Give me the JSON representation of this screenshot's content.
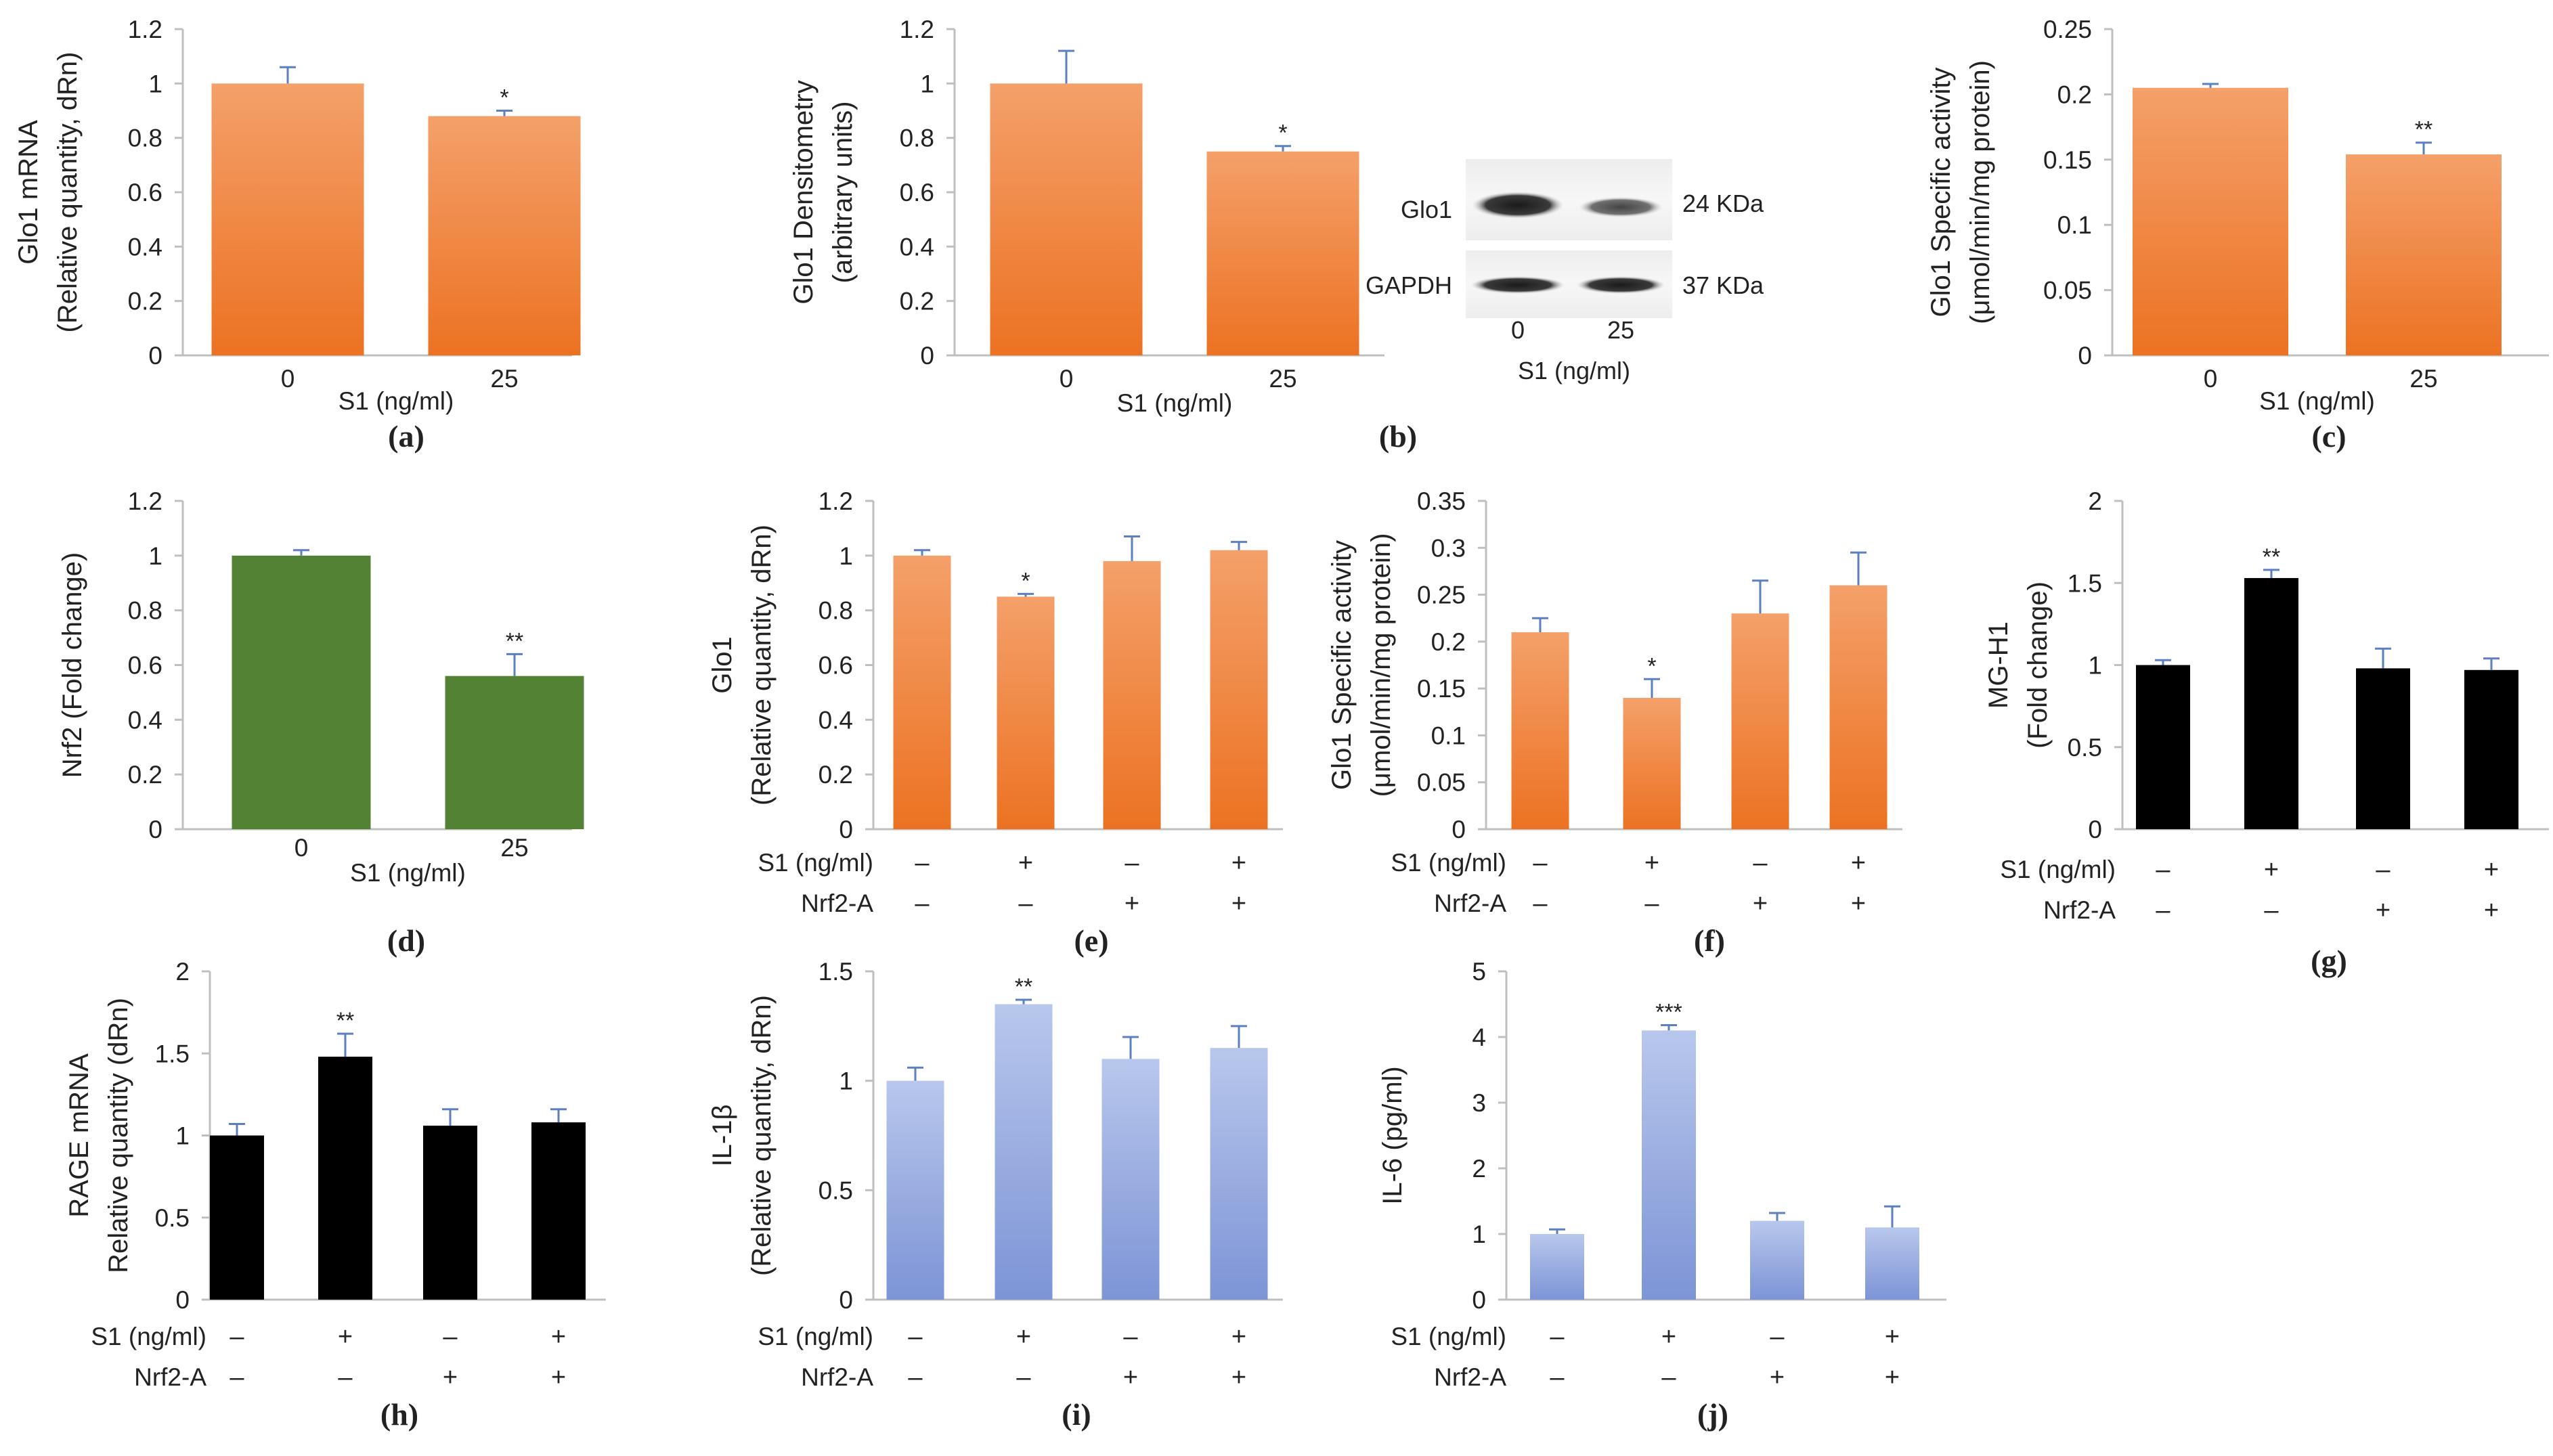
{
  "colors": {
    "orange": "#ED7D31",
    "orange_light": "#F4A46E",
    "green": "#548235",
    "black": "#000000",
    "blue": "#7F96D6",
    "blue_light": "#B3C3EA",
    "errorbar": "#5B7FBF",
    "axis": "#BFBFBF"
  },
  "chart_data": [
    {
      "id": "a",
      "letter": "(a)",
      "type": "bar",
      "ylabel": [
        "Glo1 mRNA",
        "(Relative quantity, dRn)"
      ],
      "ylim": [
        0,
        1.2
      ],
      "yticks": [
        "0",
        "0.2",
        "0.4",
        "0.6",
        "0.8",
        "1",
        "1.2"
      ],
      "xlabel": "S1 (ng/ml)",
      "categories": [
        "0",
        "25"
      ],
      "values": [
        1.0,
        0.88
      ],
      "errors": [
        0.06,
        0.02
      ],
      "significance": [
        "",
        "*"
      ],
      "color": "orange"
    },
    {
      "id": "b",
      "letter": "(b)",
      "type": "bar",
      "ylabel": [
        "Glo1 Densitometry",
        "(arbitrary units)"
      ],
      "ylim": [
        0,
        1.2
      ],
      "yticks": [
        "0",
        "0.2",
        "0.4",
        "0.6",
        "0.8",
        "1",
        "1.2"
      ],
      "xlabel": "S1 (ng/ml)",
      "categories": [
        "0",
        "25"
      ],
      "values": [
        1.0,
        0.75
      ],
      "errors": [
        0.12,
        0.02
      ],
      "significance": [
        "",
        "*"
      ],
      "color": "orange"
    },
    {
      "id": "c",
      "letter": "(c)",
      "type": "bar",
      "ylabel": [
        "Glo1 Specific activity",
        "(μmol/min/mg protein)"
      ],
      "ylim": [
        0,
        0.25
      ],
      "yticks": [
        "0",
        "0.05",
        "0.1",
        "0.15",
        "0.2",
        "0.25"
      ],
      "xlabel": "S1 (ng/ml)",
      "categories": [
        "0",
        "25"
      ],
      "values": [
        0.205,
        0.154
      ],
      "errors": [
        0.003,
        0.009
      ],
      "significance": [
        "",
        "**"
      ],
      "color": "orange"
    },
    {
      "id": "d",
      "letter": "(d)",
      "type": "bar",
      "ylabel": [
        "Nrf2 (Fold change)"
      ],
      "ylim": [
        0,
        1.2
      ],
      "yticks": [
        "0",
        "0.2",
        "0.4",
        "0.6",
        "0.8",
        "1",
        "1.2"
      ],
      "xlabel": "S1 (ng/ml)",
      "categories": [
        "0",
        "25"
      ],
      "values": [
        1.0,
        0.56
      ],
      "errors": [
        0.02,
        0.08
      ],
      "significance": [
        "",
        "**"
      ],
      "color": "green"
    },
    {
      "id": "e",
      "letter": "(e)",
      "type": "bar",
      "ylabel": [
        "Glo1",
        "(Relative quantity, dRn)"
      ],
      "ylim": [
        0,
        1.2
      ],
      "yticks": [
        "0",
        "0.2",
        "0.4",
        "0.6",
        "0.8",
        "1",
        "1.2"
      ],
      "row_labels": [
        "S1 (ng/ml)",
        "Nrf2-A"
      ],
      "rows": [
        [
          "–",
          "+",
          "–",
          "+"
        ],
        [
          "–",
          "–",
          "+",
          "+"
        ]
      ],
      "values": [
        1.0,
        0.85,
        0.98,
        1.02
      ],
      "errors": [
        0.02,
        0.01,
        0.09,
        0.03
      ],
      "significance": [
        "",
        "*",
        "",
        ""
      ],
      "color": "orange"
    },
    {
      "id": "f",
      "letter": "(f)",
      "type": "bar",
      "ylabel": [
        "Glo1 Specific activity",
        "(μmol/min/mg protein)"
      ],
      "ylim": [
        0,
        0.35
      ],
      "yticks": [
        "0",
        "0.05",
        "0.1",
        "0.15",
        "0.2",
        "0.25",
        "0.3",
        "0.35"
      ],
      "row_labels": [
        "S1 (ng/ml)",
        "Nrf2-A"
      ],
      "rows": [
        [
          "–",
          "+",
          "–",
          "+"
        ],
        [
          "–",
          "–",
          "+",
          "+"
        ]
      ],
      "values": [
        0.21,
        0.14,
        0.23,
        0.26
      ],
      "errors": [
        0.015,
        0.02,
        0.035,
        0.035
      ],
      "significance": [
        "",
        "*",
        "",
        ""
      ],
      "color": "orange"
    },
    {
      "id": "g",
      "letter": "(g)",
      "type": "bar",
      "ylabel": [
        "MG-H1",
        "(Fold change)"
      ],
      "ylim": [
        0,
        2
      ],
      "yticks": [
        "0",
        "0.5",
        "1",
        "1.5",
        "2"
      ],
      "row_labels": [
        "S1 (ng/ml)",
        "Nrf2-A"
      ],
      "rows": [
        [
          "–",
          "+",
          "–",
          "+"
        ],
        [
          "–",
          "–",
          "+",
          "+"
        ]
      ],
      "values": [
        1.0,
        1.53,
        0.98,
        0.97
      ],
      "errors": [
        0.03,
        0.05,
        0.12,
        0.07
      ],
      "significance": [
        "",
        "**",
        "",
        ""
      ],
      "color": "black"
    },
    {
      "id": "h",
      "letter": "(h)",
      "type": "bar",
      "ylabel": [
        "RAGE mRNA",
        "Relative quantity (dRn)"
      ],
      "ylim": [
        0,
        2
      ],
      "yticks": [
        "0",
        "0.5",
        "1",
        "1.5",
        "2"
      ],
      "row_labels": [
        "S1 (ng/ml)",
        "Nrf2-A"
      ],
      "rows": [
        [
          "–",
          "+",
          "–",
          "+"
        ],
        [
          "–",
          "–",
          "+",
          "+"
        ]
      ],
      "values": [
        1.0,
        1.48,
        1.06,
        1.08
      ],
      "errors": [
        0.07,
        0.14,
        0.1,
        0.08
      ],
      "significance": [
        "",
        "**",
        "",
        ""
      ],
      "color": "black"
    },
    {
      "id": "i",
      "letter": "(i)",
      "type": "bar",
      "ylabel": [
        "IL-1β",
        "(Relative quantity, dRn)"
      ],
      "ylim": [
        0,
        1.5
      ],
      "yticks": [
        "0",
        "0.5",
        "1",
        "1.5"
      ],
      "row_labels": [
        "S1 (ng/ml)",
        "Nrf2-A"
      ],
      "rows": [
        [
          "–",
          "+",
          "–",
          "+"
        ],
        [
          "–",
          "–",
          "+",
          "+"
        ]
      ],
      "values": [
        1.0,
        1.35,
        1.1,
        1.15
      ],
      "errors": [
        0.06,
        0.02,
        0.1,
        0.1
      ],
      "significance": [
        "",
        "**",
        "",
        ""
      ],
      "color": "blue"
    },
    {
      "id": "j",
      "letter": "(j)",
      "type": "bar",
      "ylabel": [
        "IL-6 (pg/ml)"
      ],
      "ylim": [
        0,
        5
      ],
      "yticks": [
        "0",
        "1",
        "2",
        "3",
        "4",
        "5"
      ],
      "row_labels": [
        "S1 (ng/ml)",
        "Nrf2-A"
      ],
      "rows": [
        [
          "–",
          "+",
          "–",
          "+"
        ],
        [
          "–",
          "–",
          "+",
          "+"
        ]
      ],
      "values": [
        1.0,
        4.1,
        1.2,
        1.1
      ],
      "errors": [
        0.07,
        0.08,
        0.12,
        0.32
      ],
      "significance": [
        "",
        "***",
        "",
        ""
      ],
      "color": "blue"
    }
  ],
  "blot": {
    "bands": [
      "Glo1",
      "GAPDH"
    ],
    "sizes": [
      "24 KDa",
      "37 KDa"
    ],
    "lanes": [
      "0",
      "25"
    ],
    "xlabel": "S1 (ng/ml)"
  }
}
